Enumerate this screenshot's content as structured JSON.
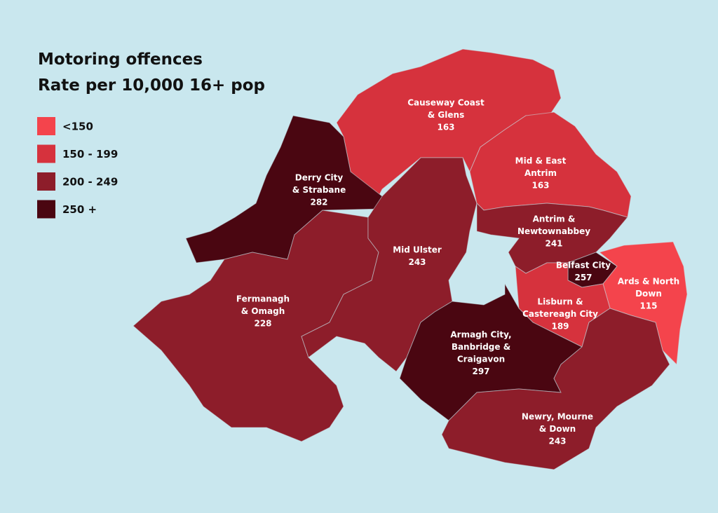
{
  "title_lines": [
    "Motoring offences",
    "Rate per 10,000 16+ pop"
  ],
  "legend": [
    {
      "label": "<150",
      "color": "#f4444c"
    },
    {
      "label": "150 - 199",
      "color": "#d6323d"
    },
    {
      "label": "200 - 249",
      "color": "#8d1d2a"
    },
    {
      "label": "250 +",
      "color": "#4a0611"
    }
  ],
  "regions": [
    {
      "name_lines": [
        "Causeway Coast",
        "& Glens"
      ],
      "value": 163,
      "color": "#d6323d"
    },
    {
      "name_lines": [
        "Derry City",
        "& Strabane"
      ],
      "value": 282,
      "color": "#4a0611"
    },
    {
      "name_lines": [
        "Fermanagh",
        "& Omagh"
      ],
      "value": 228,
      "color": "#8d1d2a"
    },
    {
      "name_lines": [
        "Mid Ulster"
      ],
      "value": 243,
      "color": "#8d1d2a"
    },
    {
      "name_lines": [
        "Mid & East",
        "Antrim"
      ],
      "value": 163,
      "color": "#d6323d"
    },
    {
      "name_lines": [
        "Antrim &",
        "Newtownabbey"
      ],
      "value": 241,
      "color": "#8d1d2a"
    },
    {
      "name_lines": [
        "Belfast City"
      ],
      "value": 257,
      "color": "#4a0611"
    },
    {
      "name_lines": [
        "Ards & North",
        "Down"
      ],
      "value": 115,
      "color": "#f4444c"
    },
    {
      "name_lines": [
        "Lisburn &",
        "Castereagh City"
      ],
      "value": 189,
      "color": "#d6323d"
    },
    {
      "name_lines": [
        "Armagh City,",
        "Banbridge &",
        "Craigavon"
      ],
      "value": 297,
      "color": "#4a0611"
    },
    {
      "name_lines": [
        "Newry, Mourne",
        "& Down"
      ],
      "value": 243,
      "color": "#8d1d2a"
    }
  ]
}
